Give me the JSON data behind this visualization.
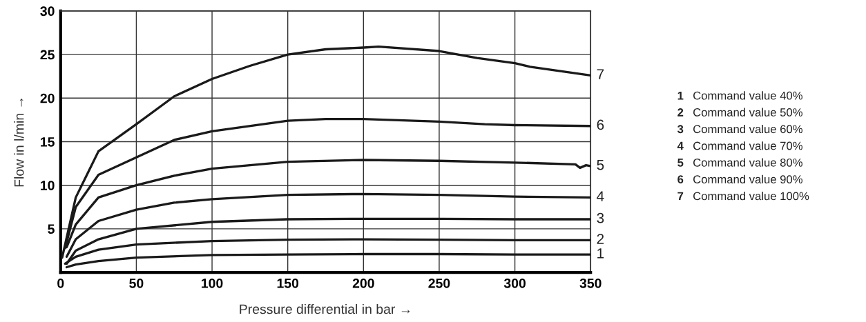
{
  "chart_data": {
    "type": "line",
    "xlabel": "Pressure differential in bar →",
    "ylabel": "Flow in l/min →",
    "xlim": [
      0,
      350
    ],
    "ylim": [
      0,
      30
    ],
    "xticks": [
      0,
      50,
      100,
      150,
      200,
      250,
      300,
      350
    ],
    "yticks": [
      {
        "value": 0,
        "label": null
      },
      5,
      10,
      15,
      20,
      25,
      30
    ],
    "grid": true,
    "marker": "none",
    "line_style": "solid",
    "series": [
      {
        "name": "1",
        "color": "#1a1a1a",
        "x": [
          4,
          10,
          25,
          50,
          100,
          150,
          200,
          250,
          300,
          350
        ],
        "values": [
          0.6,
          0.9,
          1.3,
          1.7,
          2.0,
          2.05,
          2.1,
          2.1,
          2.05,
          2.05
        ]
      },
      {
        "name": "2",
        "color": "#1a1a1a",
        "x": [
          3,
          10,
          25,
          50,
          100,
          150,
          200,
          250,
          300,
          350
        ],
        "values": [
          1.0,
          1.8,
          2.6,
          3.2,
          3.6,
          3.75,
          3.8,
          3.75,
          3.7,
          3.7
        ]
      },
      {
        "name": "3",
        "color": "#1a1a1a",
        "x": [
          4,
          10,
          25,
          50,
          100,
          150,
          200,
          250,
          300,
          350
        ],
        "values": [
          1.0,
          2.5,
          3.8,
          5.0,
          5.8,
          6.1,
          6.15,
          6.15,
          6.1,
          6.1
        ]
      },
      {
        "name": "4",
        "color": "#1a1a1a",
        "x": [
          4,
          10,
          25,
          50,
          75,
          100,
          150,
          200,
          250,
          300,
          350
        ],
        "values": [
          1.8,
          3.8,
          5.9,
          7.2,
          8.0,
          8.4,
          8.9,
          9.0,
          8.9,
          8.7,
          8.6
        ]
      },
      {
        "name": "5",
        "color": "#1a1a1a",
        "x": [
          4,
          10,
          25,
          50,
          75,
          100,
          150,
          200,
          250,
          300,
          340,
          343,
          347,
          350
        ],
        "values": [
          2.9,
          5.5,
          8.6,
          10.0,
          11.1,
          11.9,
          12.7,
          12.9,
          12.8,
          12.6,
          12.4,
          12.0,
          12.3,
          12.2
        ]
      },
      {
        "name": "6",
        "color": "#1a1a1a",
        "x": [
          3,
          10,
          25,
          50,
          75,
          100,
          150,
          175,
          200,
          250,
          280,
          300,
          350
        ],
        "values": [
          2.8,
          7.5,
          11.2,
          13.2,
          15.2,
          16.2,
          17.4,
          17.6,
          17.6,
          17.3,
          17.0,
          16.9,
          16.8
        ]
      },
      {
        "name": "7",
        "color": "#1a1a1a",
        "x": [
          1,
          10,
          25,
          50,
          75,
          100,
          125,
          150,
          175,
          200,
          210,
          250,
          275,
          300,
          310,
          350
        ],
        "values": [
          1.7,
          8.6,
          13.9,
          17.0,
          20.2,
          22.2,
          23.7,
          25.0,
          25.6,
          25.8,
          25.9,
          25.4,
          24.6,
          24.0,
          23.6,
          22.6
        ]
      }
    ],
    "annotations": [
      "Command value 40%",
      "Command value 50%",
      "Command value 60%",
      "Command value 70%",
      "Command value 80%",
      "Command value 90%",
      "Command value 100%"
    ]
  }
}
